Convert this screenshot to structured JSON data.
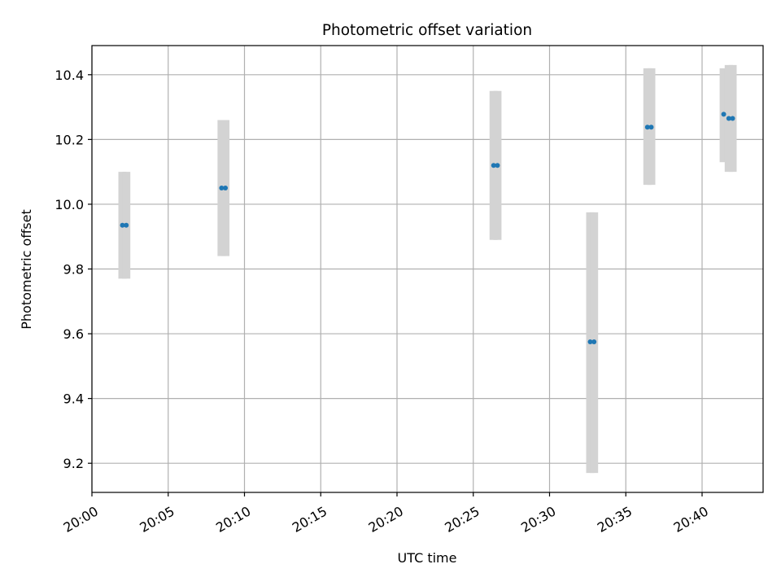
{
  "chart_data": {
    "type": "scatter",
    "title": "Photometric offset variation",
    "xlabel": "UTC time",
    "ylabel": "Photometric offset",
    "xlim": [
      "20:00",
      "20:44"
    ],
    "ylim": [
      9.11,
      10.49
    ],
    "x_ticks": [
      "20:00",
      "20:05",
      "20:10",
      "20:15",
      "20:20",
      "20:25",
      "20:30",
      "20:35",
      "20:40"
    ],
    "y_ticks": [
      "9.2",
      "9.4",
      "9.6",
      "9.8",
      "10.0",
      "10.2",
      "10.4"
    ],
    "grid": true,
    "colors": {
      "point": "#1f77b4",
      "errorbar": "#d3d3d3",
      "grid": "#b0b0b0"
    },
    "points": [
      {
        "x": "20:02:00",
        "y": 9.935,
        "y_low": 9.77,
        "y_high": 10.1
      },
      {
        "x": "20:02:15",
        "y": 9.935,
        "y_low": 9.77,
        "y_high": 10.1
      },
      {
        "x": "20:08:30",
        "y": 10.05,
        "y_low": 9.84,
        "y_high": 10.26
      },
      {
        "x": "20:08:45",
        "y": 10.05,
        "y_low": 9.84,
        "y_high": 10.26
      },
      {
        "x": "20:26:20",
        "y": 10.12,
        "y_low": 9.89,
        "y_high": 10.35
      },
      {
        "x": "20:26:35",
        "y": 10.12,
        "y_low": 9.89,
        "y_high": 10.35
      },
      {
        "x": "20:32:40",
        "y": 9.575,
        "y_low": 9.17,
        "y_high": 9.975
      },
      {
        "x": "20:32:55",
        "y": 9.575,
        "y_low": 9.17,
        "y_high": 9.975
      },
      {
        "x": "20:36:25",
        "y": 10.238,
        "y_low": 10.06,
        "y_high": 10.42
      },
      {
        "x": "20:36:40",
        "y": 10.238,
        "y_low": 10.06,
        "y_high": 10.42
      },
      {
        "x": "20:41:25",
        "y": 10.278,
        "y_low": 10.13,
        "y_high": 10.42
      },
      {
        "x": "20:41:45",
        "y": 10.265,
        "y_low": 10.1,
        "y_high": 10.43
      },
      {
        "x": "20:42:00",
        "y": 10.265,
        "y_low": 10.1,
        "y_high": 10.43
      }
    ]
  }
}
